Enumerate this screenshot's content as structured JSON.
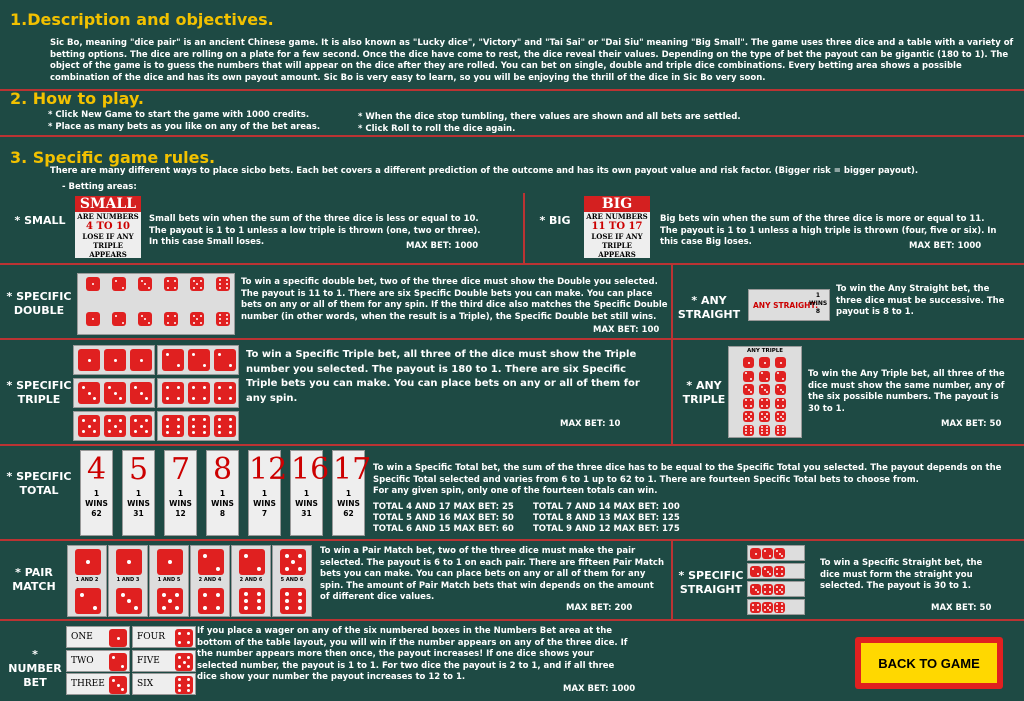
{
  "s1": {
    "title": "1.Description and objectives.",
    "para": "Sic Bo, meaning \"dice pair\" is an ancient Chinese game. It is also known as \"Lucky dice\", \"Victory\" and \"Tai Sai\" or \"Dai Siu\" meaning \"Big Small\". The game uses three dice and a table with a variety of betting options. The dice are rolling on a plate for a few second. Once the dice have come to rest, the dice reveal their values. Depending on the type of bet the payout can be gigantic (180 to 1). The object of the game is to guess the numbers that will appear on the dice after they are rolled. You can bet on single, double and triple dice combinations. Every betting area shows a possible combination of the dice and has its own payout amount. Sic Bo is very easy to learn, so you will be enjoying the thrill of the dice in Sic Bo very soon."
  },
  "s2": {
    "title": "2. How to play.",
    "l1": "* Click New Game to start the game with 1000 credits.",
    "l2": "* Place as many bets as you like on any of the bet areas.",
    "r1": "* When the dice stop tumbling, there values are shown and all bets are settled.",
    "r2": "* Click Roll to roll the dice again."
  },
  "s3": {
    "title": "3. Specific game rules.",
    "intro": "There are many different ways to place sicbo bets. Each bet covers a different prediction of the outcome and has its own payout value and risk factor. (Bigger risk = bigger payout).",
    "areas": "- Betting areas:"
  },
  "small": {
    "label": "* SMALL",
    "card_title": "SMALL",
    "card_are": "ARE NUMBERS",
    "card_range": "4 TO 10",
    "card_lose": "LOSE IF ANY TRIPLE APPEARS",
    "text": "Small bets win when the sum of the three dice is less or equal to 10. The payout is 1 to 1 unless a low triple is thrown (one, two or three). In this case Small loses.",
    "max": "MAX BET: 1000"
  },
  "big": {
    "label": "* BIG",
    "card_title": "BIG",
    "card_are": "ARE NUMBERS",
    "card_range": "11 TO 17",
    "card_lose": "LOSE IF ANY TRIPLE APPEARS",
    "text": "Big bets win when the sum of the three dice is more or equal to 11. The payout is 1 to 1 unless a high triple is thrown (four, five or six). In this case Big loses.",
    "max": "MAX BET: 1000"
  },
  "double": {
    "label": "* SPECIFIC DOUBLE",
    "text": "To win a specific double bet, two of the three dice must show the Double you selected. The payout is 11 to 1. There are six Specific Double bets you can make. You can place bets on any or all of them for any spin. If the third dice also matches the Specific Double number (in other words, when the result is a Triple), the Specific Double bet still wins.",
    "max": "MAX BET: 100"
  },
  "anystraight": {
    "label": "* ANY STRAIGHT",
    "card": "ANY STRAIGHT:",
    "card_wins": "1 WINS 8",
    "text": "To win the Any Straight bet, the three dice must be successive. The payout is 8 to 1."
  },
  "triple": {
    "label": "* SPECIFIC TRIPLE",
    "text": "To win a Specific Triple bet, all three of the dice must show the Triple number you selected. The payout is 180 to 1. There are six Specific Triple bets you can make. You can place bets on any or all of them for any spin.",
    "max": "MAX BET: 10"
  },
  "anytriple": {
    "label": "* ANY TRIPLE",
    "card": "ANY TRIPLE",
    "text": "To win the Any Triple bet, all three of the dice must show the same number, any of the six possible numbers. The payout is 30 to 1.",
    "max": "MAX BET: 50"
  },
  "total": {
    "label": "* SPECIFIC TOTAL",
    "cards": [
      {
        "n": "4",
        "p": "62"
      },
      {
        "n": "5",
        "p": "31"
      },
      {
        "n": "7",
        "p": "12"
      },
      {
        "n": "8",
        "p": "8"
      },
      {
        "n": "12",
        "p": "7"
      },
      {
        "n": "16",
        "p": "31"
      },
      {
        "n": "17",
        "p": "62"
      }
    ],
    "one": "1",
    "wins": "WINS",
    "text": "To win a Specific Total bet, the sum of the three dice has to be equal to the Specific Total you selected. The payout depends on the Specific Total selected and varies from 6 to 1 up to 62 to 1. There are fourteen Specific Total bets to choose from.",
    "text2": "For any given spin, only one of the fourteen totals can win.",
    "m1": "TOTAL 4 AND 17 MAX BET: 25",
    "m2": "TOTAL 5 AND 16 MAX BET: 50",
    "m3": "TOTAL 6 AND 15 MAX BET: 60",
    "m4": "TOTAL 7 AND 14 MAX BET: 100",
    "m5": "TOTAL 8 AND 13 MAX BET: 125",
    "m6": "TOTAL 9 AND 12 MAX BET: 175"
  },
  "pair": {
    "label": "* PAIR MATCH",
    "cards": [
      "1 AND 2",
      "1 AND 3",
      "1 AND 5",
      "2 AND 4",
      "2 AND 6",
      "5 AND 6"
    ],
    "text": "To win a Pair Match bet, two of the three dice must make the pair selected. The payout is 6 to 1 on each pair. There are fifteen Pair Match bets you can make. You can place bets on any or all of them for any spin. The amount of Pair Match bets that win depends on the amount of different dice values.",
    "max": "MAX BET: 200"
  },
  "sstraight": {
    "label": "* SPECIFIC STRAIGHT",
    "text": "To win a Specific Straight bet, the dice must form the straight you selected. The payout is 30 to 1.",
    "max": "MAX BET: 50"
  },
  "number": {
    "label": "* NUMBER BET",
    "words": [
      "ONE",
      "TWO",
      "THREE",
      "FOUR",
      "FIVE",
      "SIX"
    ],
    "text": "If you place a wager on any of the six numbered boxes in the Numbers Bet area at the bottom of the table layout, you will win if the number appears on any of the three dice. If the number appears more then once, the payout increases! If one dice shows your selected number, the payout is 1 to 1. For two dice the payout is 2 to 1, and if all three dice show your number the payout increases to 12 to 1.",
    "max": "MAX BET: 1000"
  },
  "back": "BACK TO GAME",
  "colors": {
    "bg": "#1e4a44",
    "heading": "#f2c100",
    "divider": "#b33333",
    "dice": "#e02020",
    "button": "#ffd800"
  }
}
